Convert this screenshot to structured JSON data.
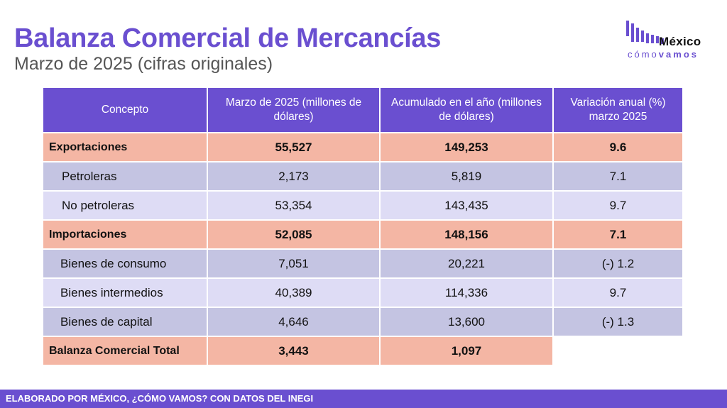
{
  "title": "Balanza Comercial de Mercancías",
  "subtitle": "Marzo de 2025 (cifras originales)",
  "logo": {
    "name": "México",
    "tag_light": "cómo",
    "tag_bold": "vamos",
    "icon": "bar-chart-logo-icon",
    "color": "#6a4fd0"
  },
  "table": {
    "headers": [
      "Concepto",
      "Marzo de 2025 (millones de dólares)",
      "Acumulado en el año (millones de dólares)",
      "Variación anual (%) marzo 2025"
    ],
    "rows": [
      {
        "concept": "Exportaciones",
        "month": "55,527",
        "ytd": "149,253",
        "var": "9.6"
      },
      {
        "concept": "Petroleras",
        "month": "2,173",
        "ytd": "5,819",
        "var": "7.1"
      },
      {
        "concept": "No petroleras",
        "month": "53,354",
        "ytd": "143,435",
        "var": "9.7"
      },
      {
        "concept": "Importaciones",
        "month": "52,085",
        "ytd": "148,156",
        "var": "7.1"
      },
      {
        "concept": "Bienes de consumo",
        "month": "7,051",
        "ytd": "20,221",
        "var": "(-) 1.2"
      },
      {
        "concept": "Bienes intermedios",
        "month": "40,389",
        "ytd": "114,336",
        "var": "9.7"
      },
      {
        "concept": "Bienes de capital",
        "month": "4,646",
        "ytd": "13,600",
        "var": "(-) 1.3"
      },
      {
        "concept": "Balanza Comercial Total",
        "month": "3,443",
        "ytd": "1,097"
      }
    ]
  },
  "colors": {
    "header": "#6a4fd0",
    "main_row": "#f4b6a4",
    "sub_row_dark": "#c4c4e2",
    "sub_row_light": "#dedcf5"
  },
  "footer": "ELABORADO POR MÉXICO, ¿CÓMO VAMOS? CON DATOS DEL INEGI"
}
